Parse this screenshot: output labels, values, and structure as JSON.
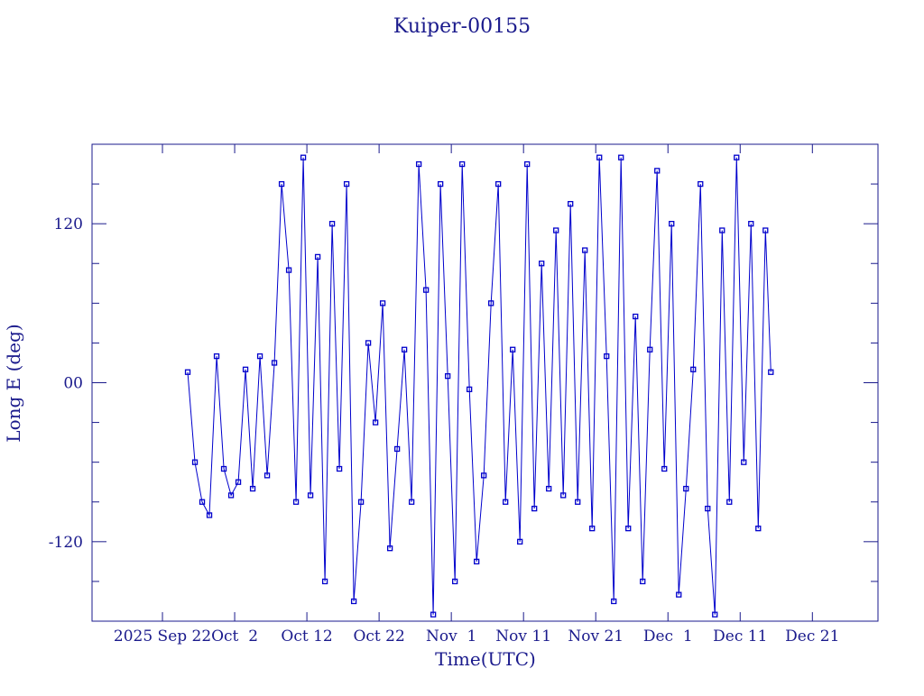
{
  "chart_data": {
    "type": "line",
    "title": "Kuiper-00155",
    "x_label": "Time(UTC)",
    "y_label": "Long E (deg)",
    "color": "#0000cc",
    "axis_color": "#1a1a8c",
    "markers": true,
    "xlim": [
      "2025-09-12T06:00",
      "2025-12-30T02:00"
    ],
    "xticks": [
      {
        "value": "2025-09-22T00:00",
        "label": "2025 Sep 22"
      },
      {
        "value": "2025-10-02T00:00",
        "label": "Oct  2"
      },
      {
        "value": "2025-10-12T00:00",
        "label": "Oct 12"
      },
      {
        "value": "2025-10-22T00:00",
        "label": "Oct 22"
      },
      {
        "value": "2025-11-01T00:00",
        "label": "Nov  1"
      },
      {
        "value": "2025-11-11T00:00",
        "label": "Nov 11"
      },
      {
        "value": "2025-11-21T00:00",
        "label": "Nov 21"
      },
      {
        "value": "2025-12-01T00:00",
        "label": "Dec  1"
      },
      {
        "value": "2025-12-11T00:00",
        "label": "Dec 11"
      },
      {
        "value": "2025-12-21T00:00",
        "label": "Dec 21"
      }
    ],
    "ylim": [
      -180,
      180
    ],
    "yticks": [
      -120,
      {
        "value": 0,
        "label": "00"
      },
      120
    ],
    "yminorticks": [
      -150,
      -90,
      -60,
      -30,
      30,
      60,
      90,
      150
    ],
    "x": [
      "2025-09-25T12:00",
      "2025-09-26T12:00",
      "2025-09-27T12:00",
      "2025-09-28T12:00",
      "2025-09-29T12:00",
      "2025-09-30T12:00",
      "2025-10-01T12:00",
      "2025-10-02T12:00",
      "2025-10-03T12:00",
      "2025-10-04T12:00",
      "2025-10-05T12:00",
      "2025-10-06T12:00",
      "2025-10-07T12:00",
      "2025-10-08T12:00",
      "2025-10-09T12:00",
      "2025-10-10T12:00",
      "2025-10-11T12:00",
      "2025-10-12T12:00",
      "2025-10-13T12:00",
      "2025-10-14T12:00",
      "2025-10-15T12:00",
      "2025-10-16T12:00",
      "2025-10-17T12:00",
      "2025-10-18T12:00",
      "2025-10-19T12:00",
      "2025-10-20T12:00",
      "2025-10-21T12:00",
      "2025-10-22T12:00",
      "2025-10-23T12:00",
      "2025-10-24T12:00",
      "2025-10-25T12:00",
      "2025-10-26T12:00",
      "2025-10-27T12:00",
      "2025-10-28T12:00",
      "2025-10-29T12:00",
      "2025-10-30T12:00",
      "2025-10-31T12:00",
      "2025-11-01T12:00",
      "2025-11-02T12:00",
      "2025-11-03T12:00",
      "2025-11-04T12:00",
      "2025-11-05T12:00",
      "2025-11-06T12:00",
      "2025-11-07T12:00",
      "2025-11-08T12:00",
      "2025-11-09T12:00",
      "2025-11-10T12:00",
      "2025-11-11T12:00",
      "2025-11-12T12:00",
      "2025-11-13T12:00",
      "2025-11-14T12:00",
      "2025-11-15T12:00",
      "2025-11-16T12:00",
      "2025-11-17T12:00",
      "2025-11-18T12:00",
      "2025-11-19T12:00",
      "2025-11-20T12:00",
      "2025-11-21T12:00",
      "2025-11-22T12:00",
      "2025-11-23T12:00",
      "2025-11-24T12:00",
      "2025-11-25T12:00",
      "2025-11-26T12:00",
      "2025-11-27T12:00",
      "2025-11-28T12:00",
      "2025-11-29T12:00",
      "2025-11-30T12:00",
      "2025-12-01T12:00",
      "2025-12-02T12:00",
      "2025-12-03T12:00",
      "2025-12-04T12:00",
      "2025-12-05T12:00",
      "2025-12-06T12:00",
      "2025-12-07T12:00",
      "2025-12-08T12:00",
      "2025-12-09T12:00",
      "2025-12-10T12:00",
      "2025-12-11T12:00",
      "2025-12-12T12:00",
      "2025-12-13T12:00",
      "2025-12-14T12:00",
      "2025-12-15T06:00"
    ],
    "values": [
      8,
      -60,
      -90,
      -100,
      20,
      -65,
      -85,
      -75,
      10,
      -80,
      20,
      -70,
      15,
      150,
      85,
      -90,
      170,
      -85,
      95,
      -150,
      120,
      -65,
      150,
      -165,
      -90,
      30,
      -30,
      60,
      -125,
      -50,
      25,
      -90,
      165,
      70,
      -175,
      150,
      5,
      -150,
      165,
      -5,
      -135,
      -70,
      60,
      150,
      -90,
      25,
      -120,
      165,
      -95,
      90,
      -80,
      115,
      -85,
      135,
      -90,
      100,
      -110,
      170,
      20,
      -165,
      170,
      -110,
      50,
      -150,
      25,
      160,
      -65,
      120,
      -160,
      -80,
      10,
      150,
      -95,
      -175,
      115,
      -90,
      170,
      -60,
      120,
      -110,
      115,
      8
    ]
  }
}
